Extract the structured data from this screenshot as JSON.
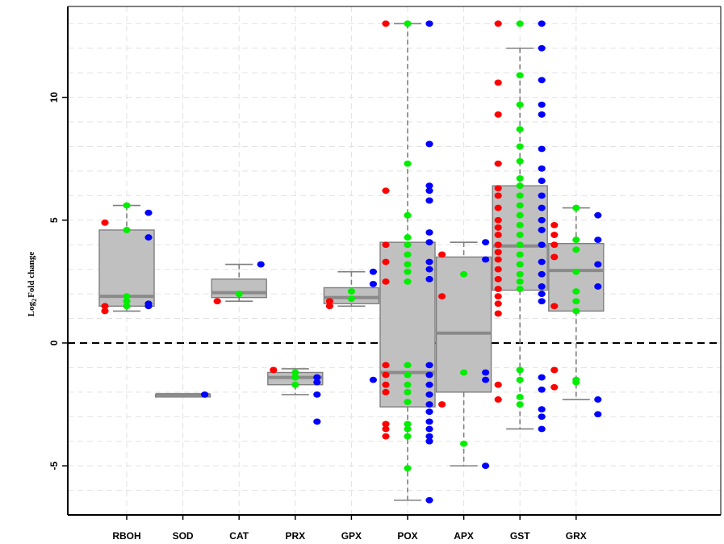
{
  "chart_data": {
    "type": "box",
    "title": "",
    "xlabel": "",
    "ylabel": "Log",
    "ylabel_subscript": "2",
    "ylabel_suffix": "Fold change",
    "ylim": [
      -7.0,
      13.7
    ],
    "yticks": [
      -5,
      0,
      5,
      10
    ],
    "grid": true,
    "reference_line_y": 0,
    "colors": {
      "box_fill": "#c0c0c0",
      "box_stroke": "#7f7f7f",
      "median": "#8a8a8a",
      "whisker": "#7f7f7f",
      "red": "#ff0000",
      "green": "#00ee00",
      "blue": "#0000ff"
    },
    "categories": [
      "RBOH",
      "SOD",
      "CAT",
      "PRX",
      "GPX",
      "POX",
      "APX",
      "GST",
      "GRX"
    ],
    "boxes": [
      {
        "q1": 1.5,
        "median": 1.9,
        "q3": 4.6,
        "whisker_low": 1.3,
        "whisker_high": 5.6
      },
      {
        "q1": -2.1,
        "median": -2.1,
        "q3": -2.1,
        "whisker_low": -2.1,
        "whisker_high": -2.1
      },
      {
        "q1": 1.85,
        "median": 2.05,
        "q3": 2.6,
        "whisker_low": 1.7,
        "whisker_high": 3.2
      },
      {
        "q1": -1.7,
        "median": -1.4,
        "q3": -1.2,
        "whisker_low": -2.1,
        "whisker_high": -1.05
      },
      {
        "q1": 1.6,
        "median": 1.85,
        "q3": 2.25,
        "whisker_low": 1.5,
        "whisker_high": 2.9
      },
      {
        "q1": -2.6,
        "median": -1.2,
        "q3": 4.1,
        "whisker_low": -6.4,
        "whisker_high": 13.0
      },
      {
        "q1": -2.0,
        "median": 0.4,
        "q3": 3.5,
        "whisker_low": -5.0,
        "whisker_high": 4.1
      },
      {
        "q1": 2.15,
        "median": 3.95,
        "q3": 6.4,
        "whisker_low": -3.5,
        "whisker_high": 12.0
      },
      {
        "q1": 1.3,
        "median": 2.95,
        "q3": 4.05,
        "whisker_low": -2.3,
        "whisker_high": 5.5
      }
    ],
    "points": {
      "red": [
        [
          0,
          4.9
        ],
        [
          0,
          1.5
        ],
        [
          0,
          1.3
        ],
        [
          2,
          1.7
        ],
        [
          3,
          -1.1
        ],
        [
          4,
          1.7
        ],
        [
          4,
          1.5
        ],
        [
          5,
          13.0
        ],
        [
          5,
          6.2
        ],
        [
          5,
          4.0
        ],
        [
          5,
          3.3
        ],
        [
          5,
          2.5
        ],
        [
          5,
          -0.9
        ],
        [
          5,
          -1.3
        ],
        [
          5,
          -1.7
        ],
        [
          5,
          -2.0
        ],
        [
          5,
          -3.3
        ],
        [
          5,
          -3.5
        ],
        [
          5,
          -3.8
        ],
        [
          6,
          3.6
        ],
        [
          6,
          1.9
        ],
        [
          6,
          -2.5
        ],
        [
          7,
          13.0
        ],
        [
          7,
          10.6
        ],
        [
          7,
          9.3
        ],
        [
          7,
          7.3
        ],
        [
          7,
          6.3
        ],
        [
          7,
          6.0
        ],
        [
          7,
          5.5
        ],
        [
          7,
          5.0
        ],
        [
          7,
          4.7
        ],
        [
          7,
          4.4
        ],
        [
          7,
          4.0
        ],
        [
          7,
          3.7
        ],
        [
          7,
          3.4
        ],
        [
          7,
          3.0
        ],
        [
          7,
          2.6
        ],
        [
          7,
          2.2
        ],
        [
          7,
          1.9
        ],
        [
          7,
          1.6
        ],
        [
          7,
          1.2
        ],
        [
          7,
          -1.7
        ],
        [
          7,
          -2.3
        ],
        [
          8,
          4.8
        ],
        [
          8,
          4.4
        ],
        [
          8,
          4.0
        ],
        [
          8,
          3.5
        ],
        [
          8,
          1.5
        ],
        [
          8,
          -1.1
        ],
        [
          8,
          -1.8
        ]
      ],
      "green": [
        [
          0,
          5.6
        ],
        [
          0,
          4.6
        ],
        [
          0,
          1.9
        ],
        [
          0,
          1.7
        ],
        [
          0,
          1.5
        ],
        [
          2,
          2.0
        ],
        [
          3,
          -1.2
        ],
        [
          3,
          -1.4
        ],
        [
          3,
          -1.7
        ],
        [
          4,
          2.1
        ],
        [
          4,
          1.8
        ],
        [
          5,
          13.0
        ],
        [
          5,
          7.3
        ],
        [
          5,
          5.2
        ],
        [
          5,
          4.3
        ],
        [
          5,
          4.0
        ],
        [
          5,
          3.6
        ],
        [
          5,
          3.2
        ],
        [
          5,
          2.9
        ],
        [
          5,
          2.5
        ],
        [
          5,
          -0.9
        ],
        [
          5,
          -1.3
        ],
        [
          5,
          -1.7
        ],
        [
          5,
          -2.0
        ],
        [
          5,
          -2.4
        ],
        [
          5,
          -3.3
        ],
        [
          5,
          -3.5
        ],
        [
          5,
          -3.8
        ],
        [
          5,
          -5.1
        ],
        [
          6,
          2.8
        ],
        [
          6,
          -1.2
        ],
        [
          6,
          -4.1
        ],
        [
          7,
          13.0
        ],
        [
          7,
          10.9
        ],
        [
          7,
          9.7
        ],
        [
          7,
          8.7
        ],
        [
          7,
          8.0
        ],
        [
          7,
          7.4
        ],
        [
          7,
          6.7
        ],
        [
          7,
          6.4
        ],
        [
          7,
          6.0
        ],
        [
          7,
          5.6
        ],
        [
          7,
          5.2
        ],
        [
          7,
          4.8
        ],
        [
          7,
          4.4
        ],
        [
          7,
          4.0
        ],
        [
          7,
          3.6
        ],
        [
          7,
          3.2
        ],
        [
          7,
          2.8
        ],
        [
          7,
          2.5
        ],
        [
          7,
          2.2
        ],
        [
          7,
          -1.1
        ],
        [
          7,
          -1.5
        ],
        [
          7,
          -2.2
        ],
        [
          7,
          -2.5
        ],
        [
          8,
          5.5
        ],
        [
          8,
          4.2
        ],
        [
          8,
          3.8
        ],
        [
          8,
          2.9
        ],
        [
          8,
          2.1
        ],
        [
          8,
          1.7
        ],
        [
          8,
          1.3
        ],
        [
          8,
          -1.5
        ],
        [
          8,
          -1.6
        ]
      ],
      "blue": [
        [
          0,
          5.3
        ],
        [
          0,
          4.3
        ],
        [
          0,
          1.6
        ],
        [
          0,
          1.5
        ],
        [
          1,
          -2.1
        ],
        [
          2,
          3.2
        ],
        [
          3,
          -1.4
        ],
        [
          3,
          -1.6
        ],
        [
          3,
          -2.1
        ],
        [
          3,
          -3.2
        ],
        [
          4,
          2.9
        ],
        [
          4,
          2.4
        ],
        [
          4,
          -1.5
        ],
        [
          5,
          13.0
        ],
        [
          5,
          8.1
        ],
        [
          5,
          6.4
        ],
        [
          5,
          6.2
        ],
        [
          5,
          5.8
        ],
        [
          5,
          4.5
        ],
        [
          5,
          4.1
        ],
        [
          5,
          3.3
        ],
        [
          5,
          3.0
        ],
        [
          5,
          2.6
        ],
        [
          5,
          -0.9
        ],
        [
          5,
          -1.3
        ],
        [
          5,
          -1.7
        ],
        [
          5,
          -2.1
        ],
        [
          5,
          -2.5
        ],
        [
          5,
          -2.8
        ],
        [
          5,
          -3.2
        ],
        [
          5,
          -3.5
        ],
        [
          5,
          -3.8
        ],
        [
          5,
          -4.0
        ],
        [
          5,
          -6.4
        ],
        [
          6,
          4.1
        ],
        [
          6,
          3.4
        ],
        [
          6,
          -1.2
        ],
        [
          6,
          -1.5
        ],
        [
          6,
          -5.0
        ],
        [
          7,
          13.0
        ],
        [
          7,
          12.0
        ],
        [
          7,
          10.7
        ],
        [
          7,
          9.7
        ],
        [
          7,
          9.3
        ],
        [
          7,
          7.9
        ],
        [
          7,
          7.1
        ],
        [
          7,
          6.6
        ],
        [
          7,
          6.0
        ],
        [
          7,
          5.5
        ],
        [
          7,
          5.0
        ],
        [
          7,
          4.6
        ],
        [
          7,
          4.0
        ],
        [
          7,
          3.3
        ],
        [
          7,
          2.8
        ],
        [
          7,
          2.3
        ],
        [
          7,
          2.0
        ],
        [
          7,
          1.7
        ],
        [
          7,
          -1.4
        ],
        [
          7,
          -1.9
        ],
        [
          7,
          -2.7
        ],
        [
          7,
          -3.0
        ],
        [
          7,
          -3.5
        ],
        [
          8,
          5.2
        ],
        [
          8,
          4.2
        ],
        [
          8,
          3.2
        ],
        [
          8,
          2.3
        ],
        [
          8,
          -2.3
        ],
        [
          8,
          -2.9
        ]
      ]
    }
  }
}
